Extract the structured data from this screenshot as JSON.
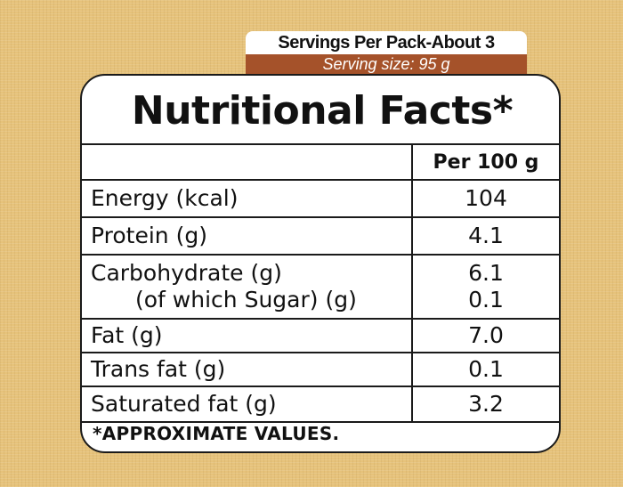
{
  "serving": {
    "servings_per_pack": "Servings Per Pack-About 3",
    "serving_size": "Serving size: 95 g"
  },
  "title": "Nutritional Facts*",
  "column_header": "Per 100 g",
  "rows": [
    {
      "label": "Energy (kcal)",
      "value": "104"
    },
    {
      "label": "Protein (g)",
      "value": "4.1"
    },
    {
      "label": "Carbohydrate (g)",
      "value": "6.1",
      "sub_label": "(of which Sugar) (g)",
      "sub_value": "0.1"
    },
    {
      "label": "Fat (g)",
      "value": "7.0"
    },
    {
      "label": "Trans fat (g)",
      "value": "0.1"
    },
    {
      "label": "Saturated fat (g)",
      "value": "3.2"
    }
  ],
  "note": "*APPROXIMATE VALUES.",
  "colors": {
    "background": "#e6c27a",
    "serving_band": "#a5522a",
    "panel": "#ffffff",
    "border": "#1a1a1a"
  }
}
